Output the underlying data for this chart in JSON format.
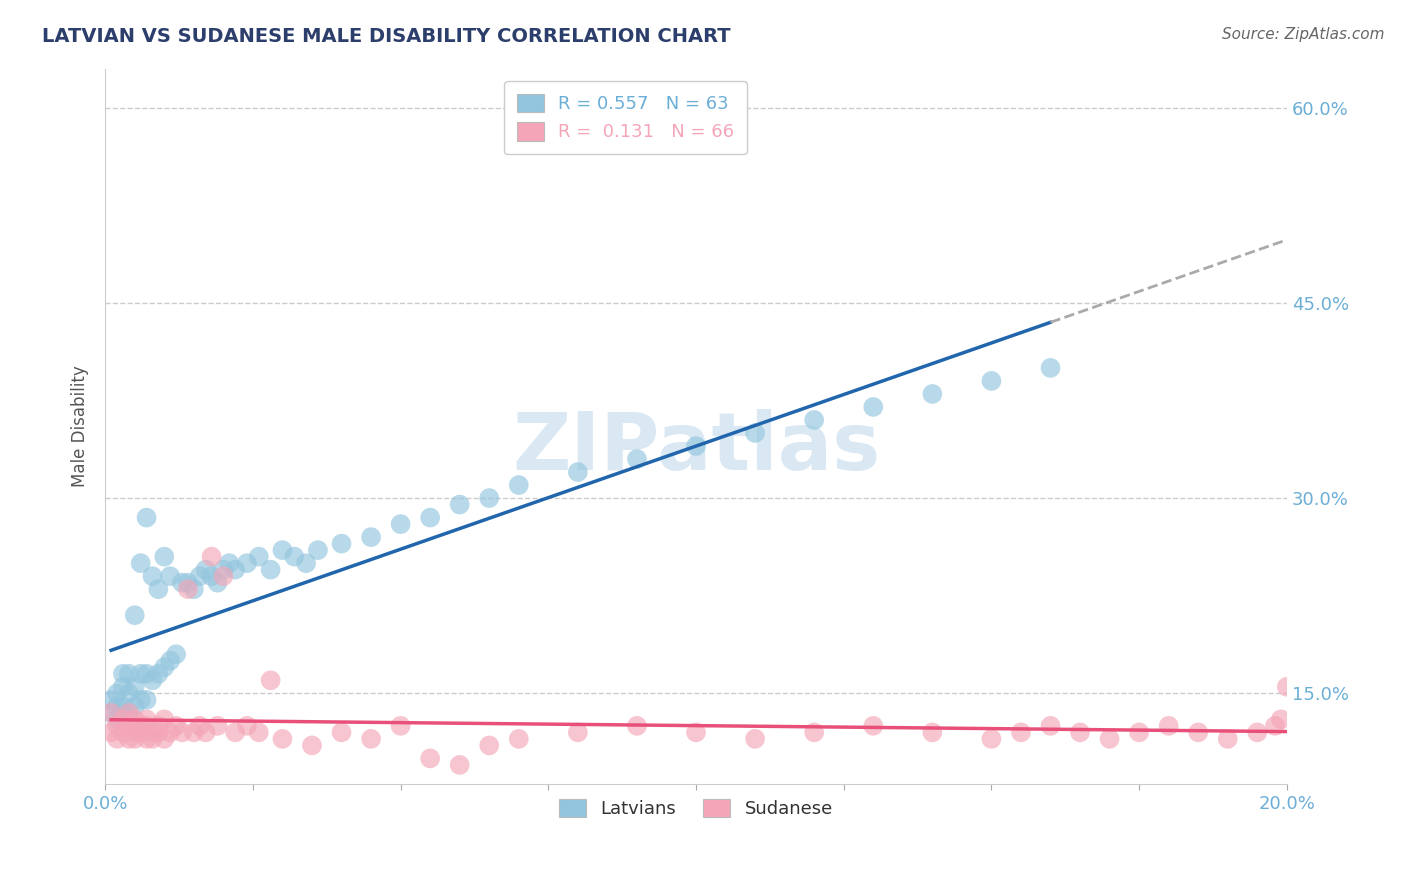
{
  "title": "LATVIAN VS SUDANESE MALE DISABILITY CORRELATION CHART",
  "source": "Source: ZipAtlas.com",
  "ylabel": "Male Disability",
  "xlim": [
    0.0,
    0.2
  ],
  "ylim": [
    0.08,
    0.63
  ],
  "yticks": [
    0.15,
    0.3,
    0.45,
    0.6
  ],
  "ytick_labels": [
    "15.0%",
    "30.0%",
    "45.0%",
    "60.0%"
  ],
  "xtick_labels_show": [
    "0.0%",
    "20.0%"
  ],
  "R_latvian": 0.557,
  "N_latvian": 63,
  "R_sudanese": 0.131,
  "N_sudanese": 66,
  "latvian_color": "#92c5de",
  "sudanese_color": "#f4a6b8",
  "latvian_trend_color": "#2166ac",
  "sudanese_trend_color": "#e8507a",
  "extrapolation_color": "#aaaaaa",
  "background_color": "#ffffff",
  "grid_color": "#cccccc",
  "title_color": "#2c3e6b",
  "axis_label_color": "#555555",
  "tick_color": "#6baed6",
  "watermark_color": "#dae8f4",
  "latvian_x": [
    0.001,
    0.001,
    0.002,
    0.002,
    0.002,
    0.003,
    0.003,
    0.003,
    0.003,
    0.004,
    0.004,
    0.004,
    0.005,
    0.005,
    0.005,
    0.006,
    0.006,
    0.006,
    0.007,
    0.007,
    0.007,
    0.008,
    0.008,
    0.009,
    0.009,
    0.01,
    0.01,
    0.011,
    0.011,
    0.012,
    0.013,
    0.014,
    0.015,
    0.016,
    0.017,
    0.018,
    0.019,
    0.02,
    0.021,
    0.022,
    0.024,
    0.026,
    0.028,
    0.03,
    0.032,
    0.034,
    0.036,
    0.04,
    0.045,
    0.05,
    0.055,
    0.06,
    0.065,
    0.07,
    0.08,
    0.09,
    0.1,
    0.11,
    0.12,
    0.13,
    0.14,
    0.15,
    0.16
  ],
  "latvian_y": [
    0.135,
    0.145,
    0.13,
    0.14,
    0.15,
    0.135,
    0.14,
    0.155,
    0.165,
    0.135,
    0.15,
    0.165,
    0.14,
    0.155,
    0.21,
    0.145,
    0.165,
    0.25,
    0.145,
    0.165,
    0.285,
    0.16,
    0.24,
    0.165,
    0.23,
    0.17,
    0.255,
    0.175,
    0.24,
    0.18,
    0.235,
    0.235,
    0.23,
    0.24,
    0.245,
    0.24,
    0.235,
    0.245,
    0.25,
    0.245,
    0.25,
    0.255,
    0.245,
    0.26,
    0.255,
    0.25,
    0.26,
    0.265,
    0.27,
    0.28,
    0.285,
    0.295,
    0.3,
    0.31,
    0.32,
    0.33,
    0.34,
    0.35,
    0.36,
    0.37,
    0.38,
    0.39,
    0.4
  ],
  "sudanese_x": [
    0.001,
    0.001,
    0.002,
    0.002,
    0.003,
    0.003,
    0.004,
    0.004,
    0.004,
    0.005,
    0.005,
    0.005,
    0.006,
    0.006,
    0.007,
    0.007,
    0.007,
    0.008,
    0.008,
    0.009,
    0.009,
    0.01,
    0.01,
    0.011,
    0.012,
    0.013,
    0.014,
    0.015,
    0.016,
    0.017,
    0.018,
    0.019,
    0.02,
    0.022,
    0.024,
    0.026,
    0.028,
    0.03,
    0.035,
    0.04,
    0.045,
    0.05,
    0.055,
    0.06,
    0.065,
    0.07,
    0.08,
    0.09,
    0.1,
    0.11,
    0.12,
    0.13,
    0.14,
    0.15,
    0.155,
    0.16,
    0.165,
    0.17,
    0.175,
    0.18,
    0.185,
    0.19,
    0.195,
    0.198,
    0.199,
    0.2
  ],
  "sudanese_y": [
    0.12,
    0.135,
    0.115,
    0.125,
    0.12,
    0.13,
    0.115,
    0.125,
    0.135,
    0.12,
    0.13,
    0.115,
    0.125,
    0.12,
    0.115,
    0.13,
    0.125,
    0.12,
    0.115,
    0.125,
    0.12,
    0.115,
    0.13,
    0.12,
    0.125,
    0.12,
    0.23,
    0.12,
    0.125,
    0.12,
    0.255,
    0.125,
    0.24,
    0.12,
    0.125,
    0.12,
    0.16,
    0.115,
    0.11,
    0.12,
    0.115,
    0.125,
    0.1,
    0.095,
    0.11,
    0.115,
    0.12,
    0.125,
    0.12,
    0.115,
    0.12,
    0.125,
    0.12,
    0.115,
    0.12,
    0.125,
    0.12,
    0.115,
    0.12,
    0.125,
    0.12,
    0.115,
    0.12,
    0.125,
    0.13,
    0.155
  ]
}
